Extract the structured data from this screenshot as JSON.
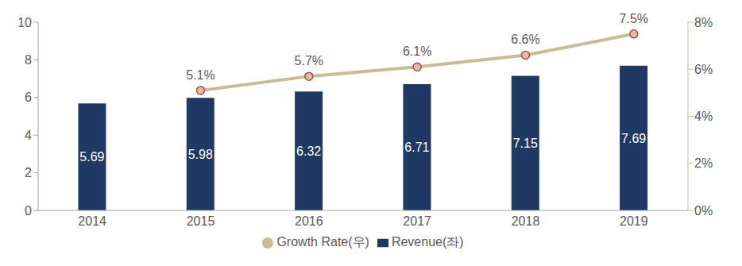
{
  "chart_data": {
    "type": "bar",
    "categories": [
      "2014",
      "2015",
      "2016",
      "2017",
      "2018",
      "2019"
    ],
    "series": [
      {
        "name": "Revenue(좌)",
        "type": "bar",
        "color": "#1f3864",
        "values": [
          5.69,
          5.98,
          6.32,
          6.71,
          7.15,
          7.69
        ],
        "data_labels": true
      },
      {
        "name": "Growth Rate(우)",
        "type": "line",
        "axis": "y2",
        "color": "#c9bc94",
        "marker": "circle",
        "values": [
          null,
          5.1,
          5.7,
          6.1,
          6.6,
          7.5
        ],
        "value_labels": [
          null,
          "5.1%",
          "5.7%",
          "6.1%",
          "6.6%",
          "7.5%"
        ],
        "data_labels": true
      }
    ],
    "ylim": [
      0,
      10
    ],
    "yticks": [
      0,
      2,
      4,
      6,
      8,
      10
    ],
    "y2lim": [
      0,
      8
    ],
    "y2ticks": [
      {
        "value": 0,
        "label": "0%"
      },
      {
        "value": 2,
        "label": "2%"
      },
      {
        "value": 4,
        "label": "4%"
      },
      {
        "value": 6,
        "label": "6%"
      },
      {
        "value": 8,
        "label": "8%"
      }
    ],
    "grid": false,
    "legend": "bottom"
  }
}
